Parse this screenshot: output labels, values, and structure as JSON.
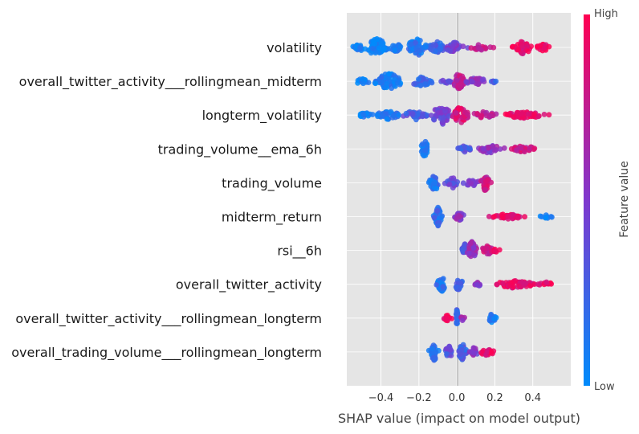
{
  "chart_data": {
    "type": "scatter",
    "subtype": "shap-beeswarm",
    "title": "",
    "xlabel": "SHAP value (impact on model output)",
    "ylabel": "",
    "xlim": [
      -0.58,
      0.6
    ],
    "xticks": [
      -0.4,
      -0.2,
      0.0,
      0.2,
      0.4
    ],
    "xtick_labels": [
      "−0.4",
      "−0.2",
      "0.0",
      "0.2",
      "0.4"
    ],
    "grid": true,
    "colorbar": {
      "title": "Feature value",
      "high_label": "High",
      "low_label": "Low",
      "low_color": "#008bfb",
      "mid_color": "#7f38ce",
      "high_color": "#ff0052"
    },
    "background_color": "#e5e5e5",
    "zero_line_color": "#999999",
    "features": [
      {
        "name": "volatility",
        "clusters": [
          {
            "x": -0.52,
            "spread": 0.03,
            "width": 0.45,
            "color": 0.05,
            "n": 25
          },
          {
            "x": -0.42,
            "spread": 0.05,
            "width": 1.0,
            "color": 0.05,
            "n": 60
          },
          {
            "x": -0.32,
            "spread": 0.03,
            "width": 0.45,
            "color": 0.1,
            "n": 25
          },
          {
            "x": -0.21,
            "spread": 0.05,
            "width": 0.9,
            "color": 0.15,
            "n": 50
          },
          {
            "x": -0.1,
            "spread": 0.04,
            "width": 0.6,
            "color": 0.25,
            "n": 35
          },
          {
            "x": -0.01,
            "spread": 0.05,
            "width": 0.55,
            "color": 0.45,
            "n": 30
          },
          {
            "x": 0.12,
            "spread": 0.05,
            "width": 0.3,
            "color": 0.75,
            "n": 18
          },
          {
            "x": 0.35,
            "spread": 0.04,
            "width": 0.75,
            "color": 0.9,
            "n": 40
          },
          {
            "x": 0.45,
            "spread": 0.03,
            "width": 0.45,
            "color": 0.95,
            "n": 20
          }
        ]
      },
      {
        "name": "overall_twitter_activity___rollingmean_midterm",
        "clusters": [
          {
            "x": -0.5,
            "spread": 0.04,
            "width": 0.3,
            "color": 0.05,
            "n": 18
          },
          {
            "x": -0.36,
            "spread": 0.06,
            "width": 0.9,
            "color": 0.08,
            "n": 60
          },
          {
            "x": -0.19,
            "spread": 0.05,
            "width": 0.55,
            "color": 0.2,
            "n": 30
          },
          {
            "x": -0.05,
            "spread": 0.03,
            "width": 0.2,
            "color": 0.4,
            "n": 10
          },
          {
            "x": 0.01,
            "spread": 0.03,
            "width": 0.85,
            "color": 0.75,
            "n": 45
          },
          {
            "x": 0.1,
            "spread": 0.05,
            "width": 0.4,
            "color": 0.55,
            "n": 25
          },
          {
            "x": 0.19,
            "spread": 0.02,
            "width": 0.2,
            "color": 0.3,
            "n": 8
          }
        ]
      },
      {
        "name": "longterm_volatility",
        "clusters": [
          {
            "x": -0.48,
            "spread": 0.04,
            "width": 0.25,
            "color": 0.05,
            "n": 15
          },
          {
            "x": -0.36,
            "spread": 0.06,
            "width": 0.45,
            "color": 0.1,
            "n": 40
          },
          {
            "x": -0.22,
            "spread": 0.05,
            "width": 0.5,
            "color": 0.3,
            "n": 30
          },
          {
            "x": -0.08,
            "spread": 0.05,
            "width": 1.0,
            "color": 0.45,
            "n": 50
          },
          {
            "x": 0.02,
            "spread": 0.03,
            "width": 1.0,
            "color": 0.85,
            "n": 40
          },
          {
            "x": 0.14,
            "spread": 0.06,
            "width": 0.35,
            "color": 0.75,
            "n": 25
          },
          {
            "x": 0.36,
            "spread": 0.1,
            "width": 0.35,
            "color": 0.92,
            "n": 50
          }
        ]
      },
      {
        "name": "trading_volume__ema_6h",
        "clusters": [
          {
            "x": -0.17,
            "spread": 0.015,
            "width": 1.0,
            "color": 0.08,
            "n": 35
          },
          {
            "x": 0.04,
            "spread": 0.03,
            "width": 0.4,
            "color": 0.3,
            "n": 18
          },
          {
            "x": 0.17,
            "spread": 0.06,
            "width": 0.45,
            "color": 0.55,
            "n": 30
          },
          {
            "x": 0.35,
            "spread": 0.06,
            "width": 0.35,
            "color": 0.8,
            "n": 30
          }
        ]
      },
      {
        "name": "trading_volume",
        "clusters": [
          {
            "x": -0.12,
            "spread": 0.02,
            "width": 1.0,
            "color": 0.15,
            "n": 35
          },
          {
            "x": -0.02,
            "spread": 0.03,
            "width": 0.55,
            "color": 0.35,
            "n": 25
          },
          {
            "x": 0.08,
            "spread": 0.04,
            "width": 0.35,
            "color": 0.5,
            "n": 18
          },
          {
            "x": 0.15,
            "spread": 0.02,
            "width": 0.9,
            "color": 0.8,
            "n": 30
          }
        ]
      },
      {
        "name": "midterm_return",
        "clusters": [
          {
            "x": -0.1,
            "spread": 0.015,
            "width": 1.0,
            "color": 0.2,
            "n": 35
          },
          {
            "x": 0.01,
            "spread": 0.03,
            "width": 0.45,
            "color": 0.55,
            "n": 25
          },
          {
            "x": 0.27,
            "spread": 0.08,
            "width": 0.3,
            "color": 0.9,
            "n": 40
          },
          {
            "x": 0.47,
            "spread": 0.03,
            "width": 0.2,
            "color": 0.05,
            "n": 10
          }
        ]
      },
      {
        "name": "rsi__6h",
        "clusters": [
          {
            "x": 0.04,
            "spread": 0.01,
            "width": 0.75,
            "color": 0.35,
            "n": 25
          },
          {
            "x": 0.08,
            "spread": 0.02,
            "width": 1.0,
            "color": 0.6,
            "n": 35
          },
          {
            "x": 0.16,
            "spread": 0.03,
            "width": 0.5,
            "color": 0.8,
            "n": 25
          },
          {
            "x": 0.21,
            "spread": 0.02,
            "width": 0.2,
            "color": 0.95,
            "n": 8
          }
        ]
      },
      {
        "name": "overall_twitter_activity",
        "clusters": [
          {
            "x": -0.08,
            "spread": 0.02,
            "width": 0.8,
            "color": 0.15,
            "n": 30
          },
          {
            "x": 0.01,
            "spread": 0.02,
            "width": 0.7,
            "color": 0.25,
            "n": 25
          },
          {
            "x": 0.11,
            "spread": 0.03,
            "width": 0.2,
            "color": 0.5,
            "n": 10
          },
          {
            "x": 0.3,
            "spread": 0.09,
            "width": 0.4,
            "color": 0.9,
            "n": 55
          },
          {
            "x": 0.47,
            "spread": 0.03,
            "width": 0.25,
            "color": 0.95,
            "n": 12
          }
        ]
      },
      {
        "name": "overall_twitter_activity___rollingmean_longterm",
        "clusters": [
          {
            "x": -0.05,
            "spread": 0.015,
            "width": 0.35,
            "color": 0.95,
            "n": 12
          },
          {
            "x": 0.0,
            "spread": 0.004,
            "width": 1.0,
            "color": 0.2,
            "n": 25
          },
          {
            "x": 0.03,
            "spread": 0.01,
            "width": 0.3,
            "color": 0.6,
            "n": 6
          },
          {
            "x": 0.19,
            "spread": 0.02,
            "width": 0.55,
            "color": 0.1,
            "n": 20
          }
        ]
      },
      {
        "name": "overall_trading_volume___rollingmean_longterm",
        "clusters": [
          {
            "x": -0.12,
            "spread": 0.02,
            "width": 0.9,
            "color": 0.15,
            "n": 30
          },
          {
            "x": -0.04,
            "spread": 0.02,
            "width": 0.6,
            "color": 0.35,
            "n": 20
          },
          {
            "x": 0.03,
            "spread": 0.02,
            "width": 0.85,
            "color": 0.25,
            "n": 30
          },
          {
            "x": 0.09,
            "spread": 0.02,
            "width": 0.5,
            "color": 0.5,
            "n": 18
          },
          {
            "x": 0.16,
            "spread": 0.03,
            "width": 0.45,
            "color": 0.9,
            "n": 25
          }
        ]
      }
    ]
  }
}
